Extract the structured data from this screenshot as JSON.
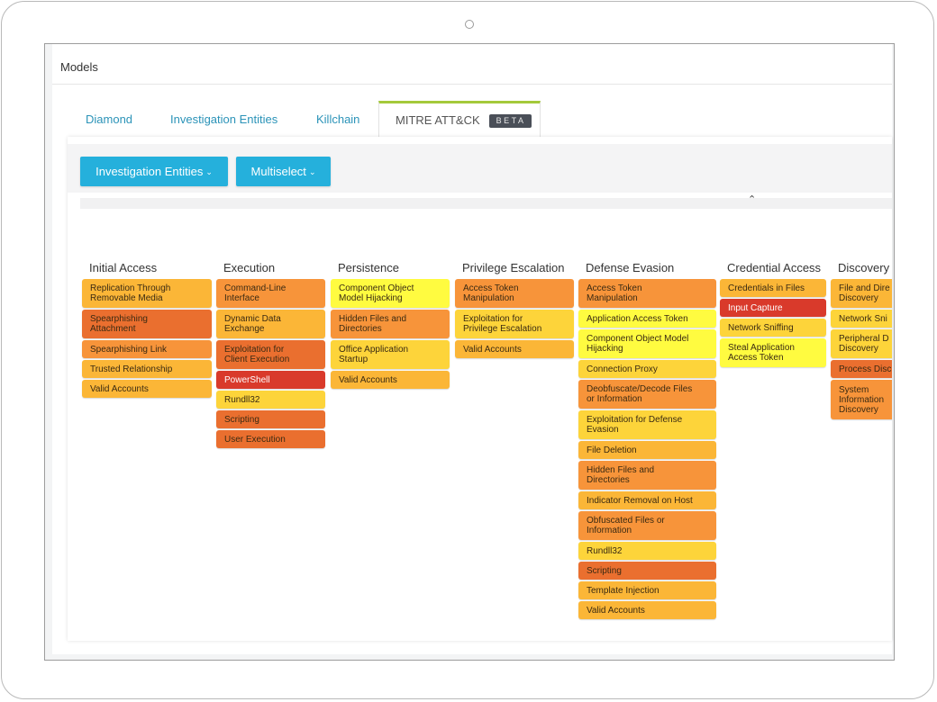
{
  "panel": {
    "title": "Models"
  },
  "tabs": [
    {
      "label": "Diamond"
    },
    {
      "label": "Investigation Entities"
    },
    {
      "label": "Killchain"
    },
    {
      "label": "MITRE ATT&CK",
      "badge": "BETA",
      "active": true
    }
  ],
  "toolbar": {
    "entities_button": "Investigation Entities",
    "multiselect_button": "Multiselect",
    "collapse_icon": "chevron-up-icon"
  },
  "colors": {
    "red": "#d93a2b",
    "dark_orange": "#ea6f2f",
    "orange": "#f7943a",
    "amber": "#fbb637",
    "gold": "#fdd43a",
    "yellow": "#fffb40"
  },
  "matrix": {
    "columns": [
      {
        "name": "Initial Access",
        "techniques": [
          {
            "label": "Replication Through\nRemovable Media",
            "color": "amber"
          },
          {
            "label": "Spearphishing\nAttachment",
            "color": "dark_orange"
          },
          {
            "label": "Spearphishing Link",
            "color": "orange"
          },
          {
            "label": "Trusted Relationship",
            "color": "amber"
          },
          {
            "label": "Valid Accounts",
            "color": "amber"
          }
        ]
      },
      {
        "name": "Execution",
        "techniques": [
          {
            "label": "Command-Line\nInterface",
            "color": "orange"
          },
          {
            "label": "Dynamic Data\nExchange",
            "color": "amber"
          },
          {
            "label": "Exploitation for\nClient Execution",
            "color": "dark_orange"
          },
          {
            "label": "PowerShell",
            "color": "red"
          },
          {
            "label": "Rundll32",
            "color": "gold"
          },
          {
            "label": "Scripting",
            "color": "dark_orange"
          },
          {
            "label": "User Execution",
            "color": "dark_orange"
          }
        ]
      },
      {
        "name": "Persistence",
        "techniques": [
          {
            "label": "Component Object\nModel Hijacking",
            "color": "yellow"
          },
          {
            "label": "Hidden Files and\nDirectories",
            "color": "orange"
          },
          {
            "label": "Office Application\nStartup",
            "color": "gold"
          },
          {
            "label": "Valid Accounts",
            "color": "amber"
          }
        ]
      },
      {
        "name": "Privilege Escalation",
        "techniques": [
          {
            "label": "Access Token\nManipulation",
            "color": "orange"
          },
          {
            "label": "Exploitation for\nPrivilege Escalation",
            "color": "gold"
          },
          {
            "label": "Valid Accounts",
            "color": "amber"
          }
        ]
      },
      {
        "name": "Defense Evasion",
        "techniques": [
          {
            "label": "Access Token\nManipulation",
            "color": "orange"
          },
          {
            "label": "Application Access Token",
            "color": "yellow"
          },
          {
            "label": "Component Object Model\nHijacking",
            "color": "yellow"
          },
          {
            "label": "Connection Proxy",
            "color": "gold"
          },
          {
            "label": "Deobfuscate/Decode Files\nor Information",
            "color": "orange"
          },
          {
            "label": "Exploitation for Defense\nEvasion",
            "color": "gold"
          },
          {
            "label": "File Deletion",
            "color": "amber"
          },
          {
            "label": "Hidden Files and\nDirectories",
            "color": "orange"
          },
          {
            "label": "Indicator Removal on Host",
            "color": "amber"
          },
          {
            "label": "Obfuscated Files or\nInformation",
            "color": "orange"
          },
          {
            "label": "Rundll32",
            "color": "gold"
          },
          {
            "label": "Scripting",
            "color": "dark_orange"
          },
          {
            "label": "Template Injection",
            "color": "amber"
          },
          {
            "label": "Valid Accounts",
            "color": "amber"
          }
        ]
      },
      {
        "name": "Credential Access",
        "techniques": [
          {
            "label": "Credentials in Files",
            "color": "amber"
          },
          {
            "label": "Input Capture",
            "color": "red"
          },
          {
            "label": "Network Sniffing",
            "color": "gold"
          },
          {
            "label": "Steal Application\nAccess Token",
            "color": "yellow"
          }
        ]
      },
      {
        "name": "Discovery",
        "techniques": [
          {
            "label": "File and Dire\nDiscovery",
            "color": "amber"
          },
          {
            "label": "Network Sni",
            "color": "gold"
          },
          {
            "label": "Peripheral D\nDiscovery",
            "color": "gold"
          },
          {
            "label": "Process Disc",
            "color": "dark_orange"
          },
          {
            "label": "System\nInformation\nDiscovery",
            "color": "orange"
          }
        ]
      }
    ]
  }
}
